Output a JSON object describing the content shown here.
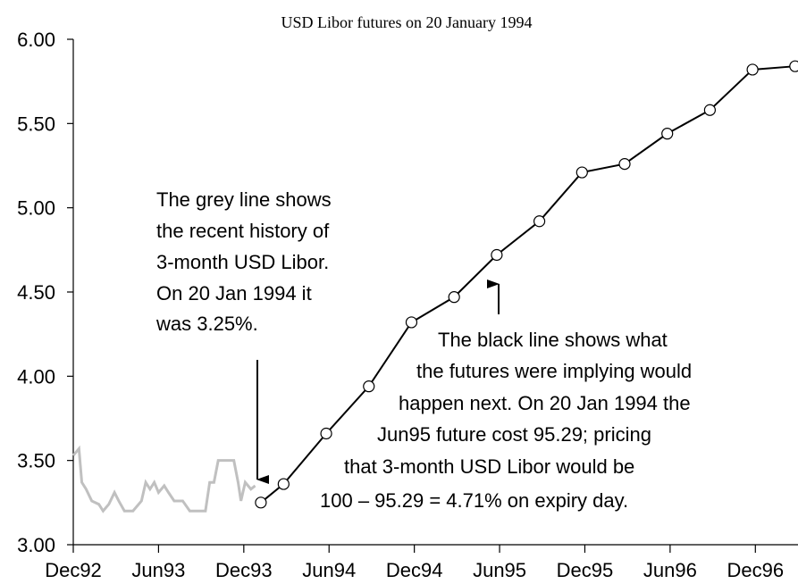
{
  "chart_data": {
    "type": "line",
    "title": "USD Libor futures on 20 January 1994",
    "xlim": [
      0,
      51
    ],
    "xticks": [
      {
        "value": 0,
        "label": "Dec92"
      },
      {
        "value": 6,
        "label": "Jun93"
      },
      {
        "value": 12,
        "label": "Dec93"
      },
      {
        "value": 18,
        "label": "Jun94"
      },
      {
        "value": 24,
        "label": "Dec94"
      },
      {
        "value": 30,
        "label": "Jun95"
      },
      {
        "value": 36,
        "label": "Dec95"
      },
      {
        "value": 42,
        "label": "Jun96"
      },
      {
        "value": 48,
        "label": "Dec96"
      }
    ],
    "ylim": [
      3,
      6
    ],
    "yticks": [
      {
        "value": 3,
        "label": "3.00"
      },
      {
        "value": 3.5,
        "label": "3.50"
      },
      {
        "value": 4,
        "label": "4.00"
      },
      {
        "value": 4.5,
        "label": "4.50"
      },
      {
        "value": 5,
        "label": "5.00"
      },
      {
        "value": 5.5,
        "label": "5.50"
      },
      {
        "value": 6,
        "label": "6.00"
      }
    ],
    "series": [
      {
        "color": "#c0c0c0",
        "markers": false,
        "x": [
          0,
          0.4,
          0.6,
          0.9,
          1.3,
          1.8,
          2.1,
          2.5,
          2.9,
          3.2,
          3.6,
          4.2,
          4.8,
          5.1,
          5.4,
          5.7,
          6.0,
          6.4,
          6.7,
          7.1,
          7.7,
          8.2,
          9.3,
          9.6,
          9.9,
          10.2,
          11.3,
          11.6,
          11.8,
          12.1,
          12.5,
          12.8
        ],
        "values": [
          3.53,
          3.57,
          3.37,
          3.33,
          3.26,
          3.24,
          3.2,
          3.24,
          3.31,
          3.26,
          3.2,
          3.2,
          3.26,
          3.37,
          3.33,
          3.37,
          3.31,
          3.35,
          3.31,
          3.26,
          3.26,
          3.2,
          3.2,
          3.37,
          3.37,
          3.5,
          3.5,
          3.37,
          3.26,
          3.37,
          3.33,
          3.35
        ]
      },
      {
        "color": "#000000",
        "markers": true,
        "x": [
          13.2,
          14.8,
          17.8,
          20.8,
          23.8,
          26.8,
          29.8,
          32.8,
          35.8,
          38.8,
          41.8,
          44.8,
          47.8,
          50.8
        ],
        "values": [
          3.25,
          3.36,
          3.66,
          3.94,
          4.32,
          4.47,
          4.72,
          4.92,
          5.21,
          5.26,
          5.44,
          5.58,
          5.82,
          5.84
        ]
      }
    ],
    "annotations": [
      [
        "The grey line shows",
        "the recent history of",
        "3-month USD Libor.",
        "On 20 Jan 1994 it",
        "was 3.25%."
      ],
      [
        "The black line shows what",
        "the futures were implying would",
        "happen next. On 20 Jan 1994 the",
        "Jun95 future cost 95.29; pricing",
        "that 3-month USD Libor would be",
        "100 – 95.29 = 4.71% on expiry day."
      ]
    ]
  }
}
